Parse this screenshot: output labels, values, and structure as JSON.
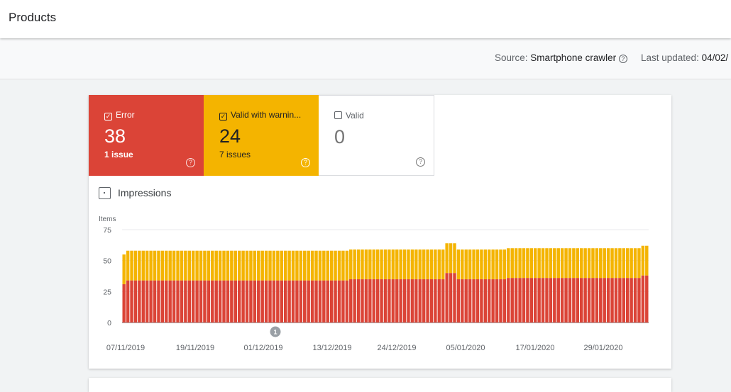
{
  "page": {
    "title": "Products",
    "source_label": "Source:",
    "source_value": "Smartphone crawler",
    "updated_label": "Last updated:",
    "updated_value": "04/02/"
  },
  "tiles": {
    "error": {
      "label": "Error",
      "count": "38",
      "sub": "1 issue",
      "checked": true,
      "color": "#db4437"
    },
    "warning": {
      "label": "Valid with warnin...",
      "count": "24",
      "sub": "7 issues",
      "checked": true,
      "color": "#f4b400"
    },
    "valid": {
      "label": "Valid",
      "count": "0",
      "sub": "",
      "checked": false
    }
  },
  "impressions": {
    "label": "Impressions"
  },
  "chart_data": {
    "type": "bar",
    "stacked": true,
    "ylabel": "Items",
    "ylim": [
      0,
      75
    ],
    "yticks": [
      0,
      25,
      50,
      75
    ],
    "xticks": [
      "07/11/2019",
      "19/11/2019",
      "01/12/2019",
      "13/12/2019",
      "24/12/2019",
      "05/01/2020",
      "17/01/2020",
      "29/01/2020"
    ],
    "annotation": {
      "label": "1",
      "date": "01/12/2019"
    },
    "grid": true,
    "series": [
      {
        "name": "Error",
        "color": "#db4437",
        "values": [
          31,
          34,
          34,
          34,
          34,
          34,
          34,
          34,
          34,
          34,
          34,
          34,
          34,
          34,
          34,
          34,
          34,
          34,
          34,
          34,
          34,
          34,
          34,
          34,
          34,
          34,
          34,
          34,
          34,
          34,
          34,
          34,
          34,
          34,
          34,
          34,
          34,
          34,
          34,
          34,
          34,
          34,
          34,
          34,
          34,
          34,
          34,
          34,
          34,
          34,
          34,
          34,
          34,
          34,
          34,
          34,
          34,
          34,
          34,
          35,
          35,
          35,
          35,
          35,
          35,
          35,
          35,
          35,
          35,
          35,
          35,
          35,
          35,
          35,
          35,
          35,
          35,
          35,
          35,
          35,
          35,
          35,
          35,
          35,
          40,
          40,
          40,
          35,
          35,
          35,
          35,
          35,
          35,
          35,
          35,
          35,
          35,
          35,
          35,
          35,
          36,
          36,
          36,
          36,
          36,
          36,
          36,
          36,
          36,
          36,
          36,
          36,
          36,
          36,
          36,
          36,
          36,
          36,
          36,
          36,
          36,
          36,
          36,
          36,
          36,
          36,
          36,
          36,
          36,
          36,
          36,
          36,
          36,
          36,
          36,
          38,
          38
        ]
      },
      {
        "name": "Valid with warnings",
        "color": "#f4b400",
        "values": [
          24,
          24,
          24,
          24,
          24,
          24,
          24,
          24,
          24,
          24,
          24,
          24,
          24,
          24,
          24,
          24,
          24,
          24,
          24,
          24,
          24,
          24,
          24,
          24,
          24,
          24,
          24,
          24,
          24,
          24,
          24,
          24,
          24,
          24,
          24,
          24,
          24,
          24,
          24,
          24,
          24,
          24,
          24,
          24,
          24,
          24,
          24,
          24,
          24,
          24,
          24,
          24,
          24,
          24,
          24,
          24,
          24,
          24,
          24,
          24,
          24,
          24,
          24,
          24,
          24,
          24,
          24,
          24,
          24,
          24,
          24,
          24,
          24,
          24,
          24,
          24,
          24,
          24,
          24,
          24,
          24,
          24,
          24,
          24,
          24,
          24,
          24,
          24,
          24,
          24,
          24,
          24,
          24,
          24,
          24,
          24,
          24,
          24,
          24,
          24,
          24,
          24,
          24,
          24,
          24,
          24,
          24,
          24,
          24,
          24,
          24,
          24,
          24,
          24,
          24,
          24,
          24,
          24,
          24,
          24,
          24,
          24,
          24,
          24,
          24,
          24,
          24,
          24,
          24,
          24,
          24,
          24,
          24,
          24,
          24,
          24,
          24
        ]
      }
    ]
  }
}
